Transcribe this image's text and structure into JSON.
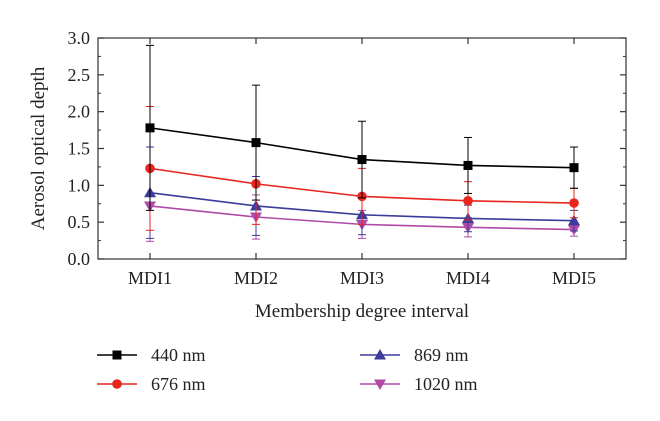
{
  "chart_data": {
    "type": "line",
    "xlabel": "Membership degree interval",
    "ylabel": "Aerosol optical depth",
    "categories": [
      "MDI1",
      "MDI2",
      "MDI3",
      "MDI4",
      "MDI5"
    ],
    "ylim": [
      0.0,
      3.0
    ],
    "yticks": [
      "0.0",
      "0.5",
      "1.0",
      "1.5",
      "2.0",
      "2.5",
      "3.0"
    ],
    "grid": false,
    "legend_position": "bottom",
    "series": [
      {
        "name": "440 nm",
        "color": "#000000",
        "marker": "square",
        "values": [
          1.78,
          1.58,
          1.35,
          1.27,
          1.24
        ],
        "error": [
          1.12,
          0.78,
          0.52,
          0.38,
          0.28
        ]
      },
      {
        "name": "676 nm",
        "color": "#e8251f",
        "marker": "circle",
        "values": [
          1.23,
          1.02,
          0.85,
          0.79,
          0.76
        ],
        "error": [
          0.84,
          0.55,
          0.38,
          0.26,
          0.2
        ]
      },
      {
        "name": "869 nm",
        "color": "#3b3c9b",
        "marker": "triangle-up",
        "values": [
          0.9,
          0.72,
          0.6,
          0.55,
          0.52
        ],
        "error": [
          0.62,
          0.4,
          0.27,
          0.18,
          0.14
        ]
      },
      {
        "name": "1020 nm",
        "color": "#b04aa8",
        "marker": "triangle-down",
        "values": [
          0.72,
          0.57,
          0.47,
          0.43,
          0.4
        ],
        "error": [
          0.48,
          0.3,
          0.19,
          0.13,
          0.09
        ]
      }
    ]
  }
}
